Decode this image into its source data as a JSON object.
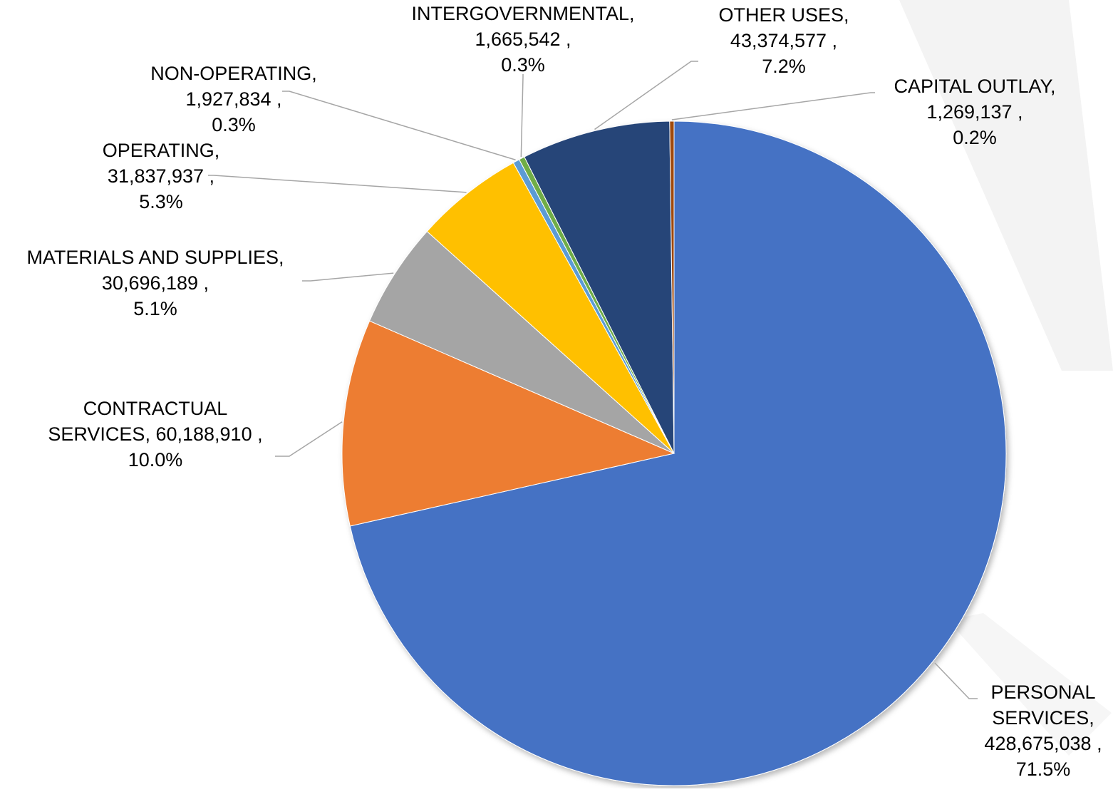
{
  "chart_data": {
    "type": "pie",
    "title": "",
    "slices": [
      {
        "name": "PERSONAL SERVICES",
        "value": 428675038,
        "value_label": "428,675,038",
        "percent_label": "71.5%",
        "color": "#4472C4",
        "label_lines": [
          "PERSONAL",
          "SERVICES,",
          "428,675,038 ,",
          "71.5%"
        ]
      },
      {
        "name": "CONTRACTUAL SERVICES",
        "value": 60188910,
        "value_label": "60,188,910",
        "percent_label": "10.0%",
        "color": "#ED7D31",
        "label_lines": [
          "CONTRACTUAL",
          "SERVICES,  60,188,910 ,",
          "10.0%"
        ]
      },
      {
        "name": "MATERIALS AND SUPPLIES",
        "value": 30696189,
        "value_label": "30,696,189",
        "percent_label": "5.1%",
        "color": "#A5A5A5",
        "label_lines": [
          "MATERIALS AND  SUPPLIES,",
          "30,696,189 ,",
          "5.1%"
        ]
      },
      {
        "name": "OPERATING",
        "value": 31837937,
        "value_label": "31,837,937",
        "percent_label": "5.3%",
        "color": "#FFC000",
        "label_lines": [
          "OPERATING,",
          "31,837,937 ,",
          "5.3%"
        ]
      },
      {
        "name": "NON-OPERATING",
        "value": 1927834,
        "value_label": "1,927,834",
        "percent_label": "0.3%",
        "color": "#5B9BD5",
        "label_lines": [
          "NON-OPERATING,",
          "1,927,834 ,",
          "0.3%"
        ]
      },
      {
        "name": "INTERGOVERNMENTAL",
        "value": 1665542,
        "value_label": "1,665,542",
        "percent_label": "0.3%",
        "color": "#70AD47",
        "label_lines": [
          "INTERGOVERNMENTAL,",
          "1,665,542 ,",
          "0.3%"
        ]
      },
      {
        "name": "OTHER USES",
        "value": 43374577,
        "value_label": "43,374,577",
        "percent_label": "7.2%",
        "color": "#264478",
        "label_lines": [
          "OTHER  USES,",
          "43,374,577 ,",
          "7.2%"
        ]
      },
      {
        "name": "CAPITAL OUTLAY",
        "value": 1269137,
        "value_label": "1,269,137",
        "percent_label": "0.2%",
        "color": "#9E480E",
        "label_lines": [
          "CAPITAL  OUTLAY,",
          "1,269,137 ,",
          "0.2%"
        ]
      }
    ],
    "start_angle": "12 o'clock",
    "direction": "clockwise",
    "legend": "none",
    "data_labels": "outside with leader lines"
  }
}
